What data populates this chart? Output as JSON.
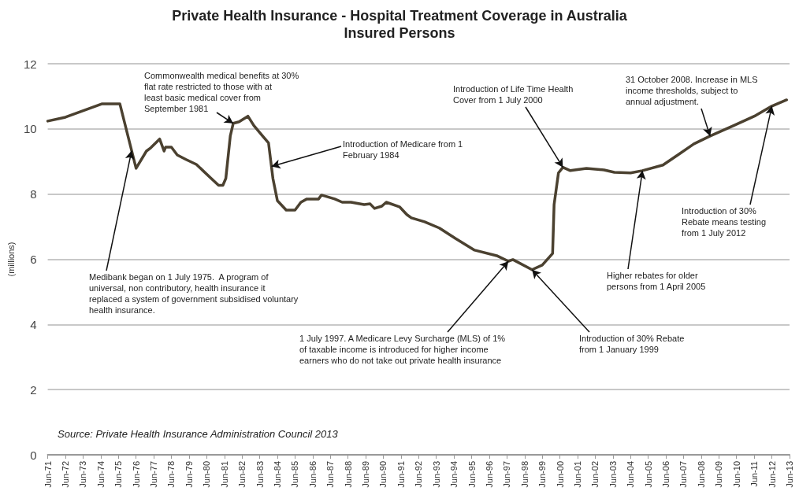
{
  "chart_data": {
    "type": "line",
    "title": "Private Health Insurance - Hospital Treatment Coverage in Australia",
    "subtitle": "Insured Persons",
    "ylabel": "(millions)",
    "x": [
      "1971-06",
      "1972-06",
      "1974-07",
      "1975-07",
      "1976-06",
      "1977-01",
      "1977-04",
      "1977-10",
      "1978-01",
      "1978-02",
      "1978-06",
      "1978-10",
      "1979-04",
      "1979-11",
      "1980-09",
      "1981-02",
      "1981-05",
      "1981-07",
      "1981-10",
      "1981-12",
      "1982-04",
      "1982-10",
      "1983-02",
      "1983-08",
      "1983-12",
      "1984-03",
      "1984-06",
      "1984-12",
      "1985-06",
      "1985-10",
      "1986-02",
      "1986-10",
      "1986-12",
      "1987-09",
      "1988-02",
      "1988-08",
      "1989-05",
      "1989-09",
      "1989-12",
      "1990-05",
      "1990-08",
      "1991-05",
      "1991-10",
      "1992-01",
      "1992-10",
      "1993-08",
      "1994-07",
      "1995-08",
      "1996-11",
      "1997-07",
      "1997-10",
      "1998-11",
      "1999-06",
      "2000-01",
      "2000-02",
      "2000-05",
      "2000-08",
      "2001-01",
      "2001-12",
      "2002-12",
      "2003-07",
      "2004-06",
      "2005-02",
      "2006-04",
      "2007-02",
      "2008-01",
      "2008-12",
      "2010-04",
      "2011-07",
      "2012-06",
      "2013-04"
    ],
    "series": [
      {
        "color": "#4b4130",
        "values": [
          10.24,
          10.36,
          10.77,
          10.77,
          8.79,
          9.32,
          9.42,
          9.69,
          9.32,
          9.44,
          9.44,
          9.2,
          9.06,
          8.91,
          8.48,
          8.27,
          8.27,
          8.48,
          9.78,
          10.17,
          10.22,
          10.39,
          10.1,
          9.78,
          9.57,
          8.48,
          7.8,
          7.51,
          7.51,
          7.75,
          7.85,
          7.85,
          7.97,
          7.85,
          7.75,
          7.75,
          7.68,
          7.7,
          7.56,
          7.63,
          7.75,
          7.61,
          7.37,
          7.27,
          7.15,
          6.96,
          6.64,
          6.28,
          6.11,
          5.94,
          5.99,
          5.68,
          5.82,
          6.18,
          7.68,
          8.65,
          8.82,
          8.72,
          8.79,
          8.74,
          8.67,
          8.65,
          8.72,
          8.89,
          9.2,
          9.54,
          9.78,
          10.1,
          10.41,
          10.7,
          10.89
        ]
      }
    ],
    "xlim": [
      "1971-06",
      "2013-06"
    ],
    "xticks": [
      {
        "value": "1971-06",
        "label": "Jun-71"
      },
      {
        "value": "1972-06",
        "label": "Jun-72"
      },
      {
        "value": "1973-06",
        "label": "Jun-73"
      },
      {
        "value": "1974-06",
        "label": "Jun-74"
      },
      {
        "value": "1975-06",
        "label": "Jun-75"
      },
      {
        "value": "1976-06",
        "label": "Jun-76"
      },
      {
        "value": "1977-06",
        "label": "Jun-77"
      },
      {
        "value": "1978-06",
        "label": "Jun-78"
      },
      {
        "value": "1979-06",
        "label": "Jun-79"
      },
      {
        "value": "1980-06",
        "label": "Jun-80"
      },
      {
        "value": "1981-06",
        "label": "Jun-81"
      },
      {
        "value": "1982-06",
        "label": "Jun-82"
      },
      {
        "value": "1983-06",
        "label": "Jun-83"
      },
      {
        "value": "1984-06",
        "label": "Jun-84"
      },
      {
        "value": "1985-06",
        "label": "Jun-85"
      },
      {
        "value": "1986-06",
        "label": "Jun-86"
      },
      {
        "value": "1987-06",
        "label": "Jun-87"
      },
      {
        "value": "1988-06",
        "label": "Jun-88"
      },
      {
        "value": "1989-06",
        "label": "Jun-89"
      },
      {
        "value": "1990-06",
        "label": "Jun-90"
      },
      {
        "value": "1991-06",
        "label": "Jun-91"
      },
      {
        "value": "1992-06",
        "label": "Jun-92"
      },
      {
        "value": "1993-06",
        "label": "Jun-93"
      },
      {
        "value": "1994-06",
        "label": "Jun-94"
      },
      {
        "value": "1995-06",
        "label": "Jun-95"
      },
      {
        "value": "1996-06",
        "label": "Jun-96"
      },
      {
        "value": "1997-06",
        "label": "Jun-97"
      },
      {
        "value": "1998-06",
        "label": "Jun-98"
      },
      {
        "value": "1999-06",
        "label": "Jun-99"
      },
      {
        "value": "2000-06",
        "label": "Jun-00"
      },
      {
        "value": "2001-06",
        "label": "Jun-01"
      },
      {
        "value": "2002-06",
        "label": "Jun-02"
      },
      {
        "value": "2003-06",
        "label": "Jun-03"
      },
      {
        "value": "2004-06",
        "label": "Jun-04"
      },
      {
        "value": "2005-06",
        "label": "Jun-05"
      },
      {
        "value": "2006-06",
        "label": "Jun-06"
      },
      {
        "value": "2007-06",
        "label": "Jun-07"
      },
      {
        "value": "2008-06",
        "label": "Jun-08"
      },
      {
        "value": "2009-06",
        "label": "Jun-09"
      },
      {
        "value": "2010-06",
        "label": "Jun-10"
      },
      {
        "value": "2011-06",
        "label": "Jun-11"
      },
      {
        "value": "2012-06",
        "label": "Jun-12"
      },
      {
        "value": "2013-06",
        "label": "Jun-13"
      }
    ],
    "ylim": [
      0,
      12
    ],
    "yticks": [
      0,
      2,
      4,
      6,
      8,
      10,
      12
    ],
    "grid": "y",
    "marker": "none",
    "line_style": "solid",
    "annotations": [
      {
        "text": "Commonwealth medical benefits at 30% flat rate restricted to those with at least basic medical cover from September 1981",
        "x": "1981-12",
        "y": 10.17
      },
      {
        "text": "Introduction of Medicare from 1 February 1984",
        "x": "1984-02",
        "y": 8.85
      },
      {
        "text": "Medibank began on 1 July 1975.  A program of universal, non contributory, health insurance it replaced a system of government subsidised voluntary health insurance.",
        "x": "1976-03",
        "y": 9.33
      },
      {
        "text": "1 July 1997. A Medicare Levy Surcharge (MLS) of 1% of taxable income is introduced for higher income earners who do not take out private health insurance",
        "x": "1997-07",
        "y": 5.94
      },
      {
        "text": "Introduction of Life Time Health Cover from 1 July 2000",
        "x": "2000-08",
        "y": 8.82
      },
      {
        "text": "Higher rebates for older persons from 1 April 2005",
        "x": "2005-02",
        "y": 8.72
      },
      {
        "text": "Introduction of 30% Rebate from 1 January 1999",
        "x": "1998-11",
        "y": 5.68
      },
      {
        "text": "31 October 2008. Increase in MLS income thresholds, subject to annual adjustment.",
        "x": "2008-12",
        "y": 9.78
      },
      {
        "text": "Introduction of 30% Rebate means testing from 1 July 2012",
        "x": "2012-06",
        "y": 10.7
      },
      "Source: Private Health Insurance Administration Council 2013"
    ]
  }
}
